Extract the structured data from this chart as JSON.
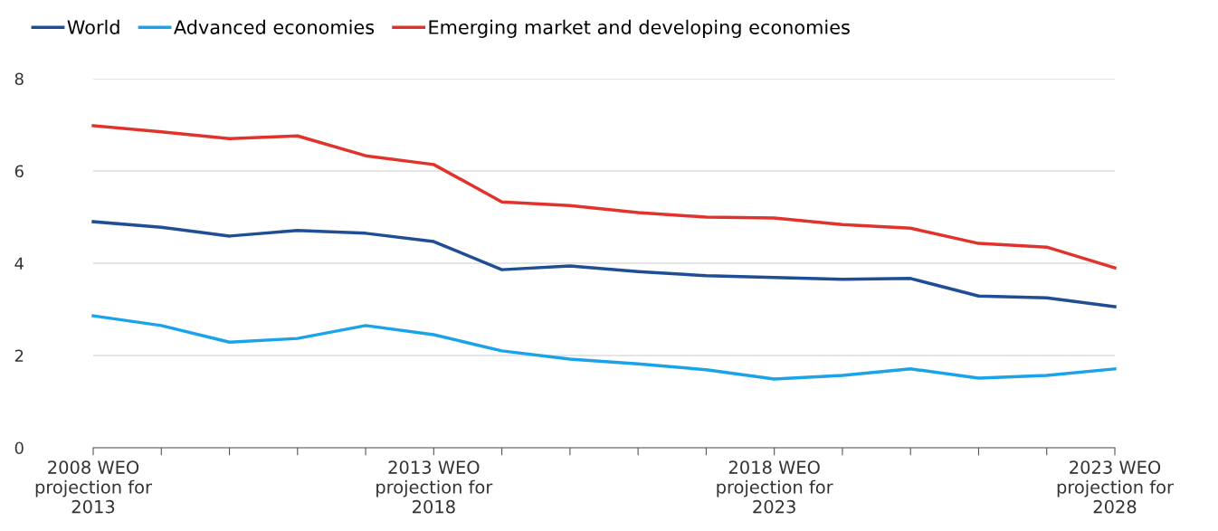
{
  "chart_data": {
    "type": "line",
    "categories": [
      "2008 WEO\nprojection for\n2013",
      null,
      null,
      null,
      null,
      "2013 WEO\nprojection for\n2018",
      null,
      null,
      null,
      null,
      "2018 WEO\nprojection for\n2023",
      null,
      null,
      null,
      null,
      "2023 WEO\nprojection for\n2028"
    ],
    "series": [
      {
        "name": "World",
        "color": "#1f4e95",
        "values": [
          4.9,
          4.78,
          4.59,
          4.71,
          4.65,
          4.47,
          3.86,
          3.94,
          3.82,
          3.73,
          3.69,
          3.65,
          3.67,
          3.29,
          3.25,
          3.06
        ]
      },
      {
        "name": "Advanced economies",
        "color": "#1aa3e8",
        "values": [
          2.86,
          2.65,
          2.29,
          2.37,
          2.65,
          2.45,
          2.1,
          1.92,
          1.82,
          1.69,
          1.49,
          1.57,
          1.71,
          1.51,
          1.57,
          1.71
        ]
      },
      {
        "name": "Emerging market and developing economies",
        "color": "#e0332b",
        "values": [
          6.98,
          6.85,
          6.7,
          6.76,
          6.33,
          6.14,
          5.33,
          5.25,
          5.1,
          5.0,
          4.98,
          4.84,
          4.76,
          4.43,
          4.35,
          3.9
        ]
      }
    ],
    "ylim": [
      0,
      8
    ],
    "yticks": [
      0,
      2,
      4,
      6,
      8
    ],
    "grid": "y",
    "legend": "top left",
    "marker": "none",
    "line_style": "solid"
  }
}
